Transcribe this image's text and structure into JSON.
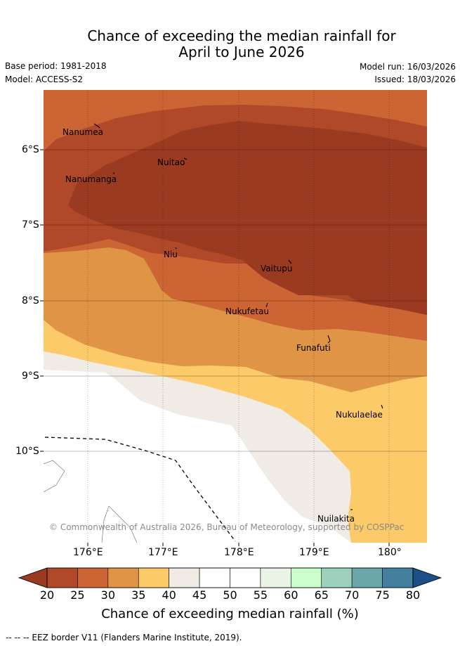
{
  "title": {
    "line1": "Chance of exceeding the median rainfall for",
    "line2": "April to June 2026"
  },
  "meta": {
    "base_period": "Base period: 1981-2018",
    "model": "Model: ACCESS-S2",
    "model_run": "Model run: 16/03/2026",
    "issued": "Issued: 18/03/2026"
  },
  "map": {
    "lat_labels": [
      "6°S",
      "7°S",
      "8°S",
      "9°S",
      "10°S"
    ],
    "lon_labels": [
      "176°E",
      "177°E",
      "178°E",
      "179°E",
      "180°"
    ],
    "places": [
      "Nanumea",
      "Nuitao",
      "Nanumanga",
      "Niu",
      "Vaitupu",
      "Nukufetau",
      "Funafuti",
      "Nukulaelae",
      "Nuilakita"
    ],
    "copyright": "© Commonwealth of Australia 2026, Bureau of Meteorology, supported by COSPPac"
  },
  "colorbar": {
    "ticks": [
      "20",
      "25",
      "30",
      "35",
      "40",
      "45",
      "50",
      "55",
      "60",
      "65",
      "70",
      "75",
      "80"
    ],
    "colors": [
      "#b0492a",
      "#cc6533",
      "#df9446",
      "#fcca69",
      "#f0ebe5",
      "#ffffff",
      "#ffffff",
      "#e9f4e6",
      "#ccffcc",
      "#9dd1bc",
      "#6ba7a8",
      "#447f9e"
    ],
    "under_color": "#9a3a20",
    "over_color": "#1c4f8a",
    "label": "Chance of exceeding median rainfall (%)"
  },
  "legend": {
    "eez": "--  --  -- EEZ border V11 (Flanders Marine Institute, 2019)."
  }
}
